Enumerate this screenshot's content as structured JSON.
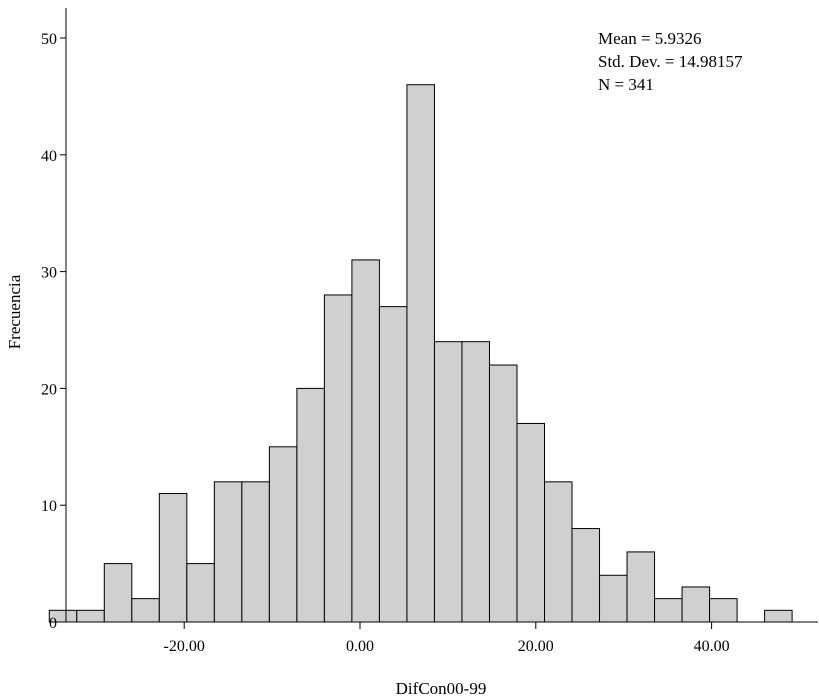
{
  "chart_data": {
    "type": "bar",
    "xlabel": "DifCon00-99",
    "ylabel": "Frecuencia",
    "ylim": [
      0,
      50
    ],
    "yticks": [
      "0",
      "10",
      "20",
      "30",
      "40",
      "50"
    ],
    "xticks": [
      {
        "value": -20,
        "label": "-20.00"
      },
      {
        "value": 0,
        "label": "0.00"
      },
      {
        "value": 20,
        "label": "20.00"
      },
      {
        "value": 40,
        "label": "40.00"
      }
    ],
    "bins": {
      "start": -35.35,
      "width": 3.13
    },
    "values": [
      1,
      1,
      5,
      2,
      11,
      5,
      12,
      12,
      15,
      20,
      28,
      31,
      27,
      46,
      24,
      24,
      22,
      17,
      12,
      8,
      4,
      6,
      2,
      3,
      2,
      0,
      1
    ],
    "grid": false,
    "stats": {
      "mean": "Mean = 5.9326",
      "std": "Std. Dev. = 14.98157",
      "n": "N = 341"
    },
    "colors": {
      "bar_fill": "#d0d0d0",
      "bar_stroke": "#000000"
    }
  }
}
